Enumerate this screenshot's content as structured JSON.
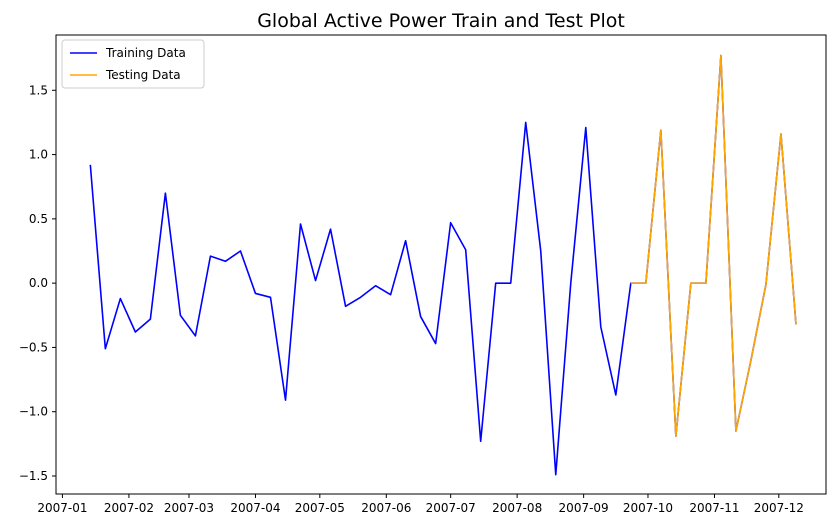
{
  "chart_data": {
    "type": "line",
    "title": "Global Active Power Train and Test Plot",
    "xlabel": "",
    "ylabel": "",
    "x_ticks": [
      "2007-01",
      "2007-02",
      "2007-03",
      "2007-04",
      "2007-05",
      "2007-06",
      "2007-07",
      "2007-08",
      "2007-09",
      "2007-10",
      "2007-11",
      "2007-12"
    ],
    "y_ticks": [
      -1.5,
      -1.0,
      -0.5,
      0.0,
      0.5,
      1.0,
      1.5
    ],
    "y_tick_labels": [
      "−1.5",
      "−1.0",
      "−0.5",
      "0.0",
      "0.5",
      "1.0",
      "1.5"
    ],
    "xlim": [
      "2006-12-29",
      "2007-12-23"
    ],
    "ylim": [
      -1.64,
      1.93
    ],
    "grid": false,
    "legend_position": "top-left",
    "series": [
      {
        "name": "Training Data",
        "color": "#0000ff",
        "x": [
          "2007-01-14",
          "2007-01-21",
          "2007-01-28",
          "2007-02-04",
          "2007-02-11",
          "2007-02-18",
          "2007-02-25",
          "2007-03-04",
          "2007-03-11",
          "2007-03-18",
          "2007-03-25",
          "2007-04-01",
          "2007-04-08",
          "2007-04-15",
          "2007-04-22",
          "2007-04-29",
          "2007-05-06",
          "2007-05-13",
          "2007-05-20",
          "2007-05-27",
          "2007-06-03",
          "2007-06-10",
          "2007-06-17",
          "2007-06-24",
          "2007-07-01",
          "2007-07-08",
          "2007-07-15",
          "2007-07-22",
          "2007-07-29",
          "2007-08-05",
          "2007-08-12",
          "2007-08-19",
          "2007-08-26",
          "2007-09-02",
          "2007-09-09",
          "2007-09-16",
          "2007-09-23",
          "2007-09-30",
          "2007-10-07",
          "2007-10-14",
          "2007-10-21",
          "2007-10-28",
          "2007-11-04",
          "2007-11-11",
          "2007-11-18",
          "2007-11-25",
          "2007-12-02",
          "2007-12-09"
        ],
        "values": [
          0.92,
          -0.51,
          -0.12,
          -0.38,
          -0.28,
          0.7,
          -0.25,
          -0.41,
          0.21,
          0.17,
          0.25,
          -0.08,
          -0.11,
          -0.91,
          0.46,
          0.02,
          0.42,
          -0.18,
          -0.11,
          -0.02,
          -0.09,
          0.33,
          -0.26,
          -0.47,
          0.47,
          0.26,
          -1.23,
          0.0,
          0.0,
          1.25,
          0.25,
          -1.49,
          0.0,
          1.21,
          -0.34,
          -0.87,
          0.0,
          0.0,
          1.19,
          -1.19,
          0.0,
          0.0,
          1.77,
          -1.15,
          -0.6,
          -0.01,
          1.16,
          -0.32
        ]
      },
      {
        "name": "Testing Data",
        "color": "#ffa500",
        "x": [
          "2007-09-23",
          "2007-09-30",
          "2007-10-07",
          "2007-10-14",
          "2007-10-21",
          "2007-10-28",
          "2007-11-04",
          "2007-11-11",
          "2007-11-18",
          "2007-11-25",
          "2007-12-02",
          "2007-12-09"
        ],
        "values": [
          0.0,
          0.0,
          1.19,
          -1.19,
          0.0,
          0.0,
          1.77,
          -1.15,
          -0.6,
          -0.01,
          1.16,
          -0.32
        ]
      }
    ]
  }
}
